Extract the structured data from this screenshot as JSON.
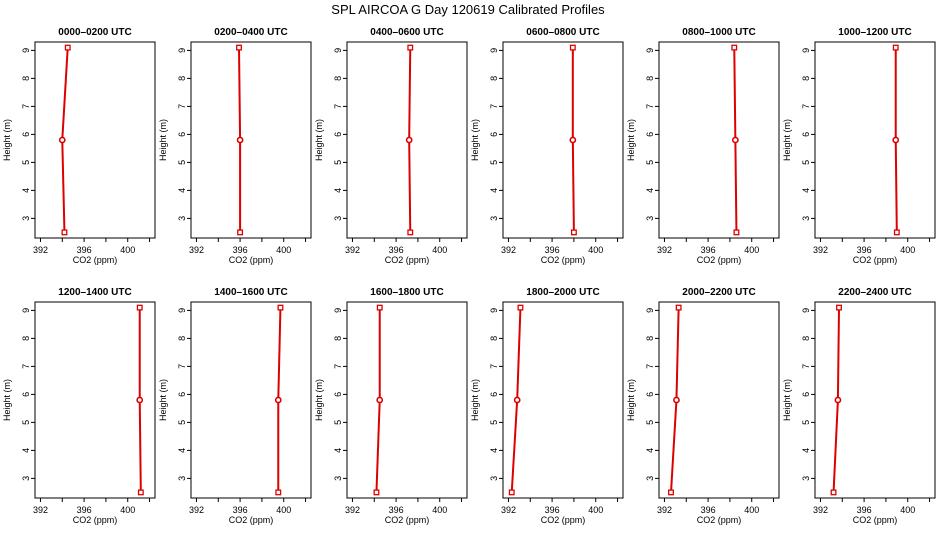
{
  "page_title": "SPL AIRCOA G  Day 120619  Calibrated Profiles",
  "series_color": "#dd0000",
  "chart_data": [
    {
      "type": "line",
      "title": "0000–0200 UTC",
      "xlabel": "CO2 (ppm)",
      "ylabel": "Height (m)",
      "xlim": [
        391.5,
        402.5
      ],
      "ylim": [
        2.3,
        9.3
      ],
      "xticks": [
        392,
        396,
        400
      ],
      "yticks": [
        3,
        4,
        5,
        6,
        7,
        8,
        9
      ],
      "series": [
        {
          "x": [
            394.2,
            394.0,
            394.5
          ],
          "y": [
            2.5,
            5.8,
            9.1
          ]
        }
      ]
    },
    {
      "type": "line",
      "title": "0200–0400 UTC",
      "xlabel": "CO2 (ppm)",
      "ylabel": "Height (m)",
      "xlim": [
        391.5,
        402.5
      ],
      "ylim": [
        2.3,
        9.3
      ],
      "xticks": [
        392,
        396,
        400
      ],
      "yticks": [
        3,
        4,
        5,
        6,
        7,
        8,
        9
      ],
      "series": [
        {
          "x": [
            396.0,
            396.0,
            395.9
          ],
          "y": [
            2.5,
            5.8,
            9.1
          ]
        }
      ]
    },
    {
      "type": "line",
      "title": "0400–0600 UTC",
      "xlabel": "CO2 (ppm)",
      "ylabel": "Height (m)",
      "xlim": [
        391.5,
        402.5
      ],
      "ylim": [
        2.3,
        9.3
      ],
      "xticks": [
        392,
        396,
        400
      ],
      "yticks": [
        3,
        4,
        5,
        6,
        7,
        8,
        9
      ],
      "series": [
        {
          "x": [
            397.3,
            397.2,
            397.3
          ],
          "y": [
            2.5,
            5.8,
            9.1
          ]
        }
      ]
    },
    {
      "type": "line",
      "title": "0600–0800 UTC",
      "xlabel": "CO2 (ppm)",
      "ylabel": "Height (m)",
      "xlim": [
        391.5,
        402.5
      ],
      "ylim": [
        2.3,
        9.3
      ],
      "xticks": [
        392,
        396,
        400
      ],
      "yticks": [
        3,
        4,
        5,
        6,
        7,
        8,
        9
      ],
      "series": [
        {
          "x": [
            398.0,
            397.9,
            397.9
          ],
          "y": [
            2.5,
            5.8,
            9.1
          ]
        }
      ]
    },
    {
      "type": "line",
      "title": "0800–1000 UTC",
      "xlabel": "CO2 (ppm)",
      "ylabel": "Height (m)",
      "xlim": [
        391.5,
        402.5
      ],
      "ylim": [
        2.3,
        9.3
      ],
      "xticks": [
        392,
        396,
        400
      ],
      "yticks": [
        3,
        4,
        5,
        6,
        7,
        8,
        9
      ],
      "series": [
        {
          "x": [
            398.6,
            398.5,
            398.4
          ],
          "y": [
            2.5,
            5.8,
            9.1
          ]
        }
      ]
    },
    {
      "type": "line",
      "title": "1000–1200 UTC",
      "xlabel": "CO2 (ppm)",
      "ylabel": "Height (m)",
      "xlim": [
        391.5,
        402.5
      ],
      "ylim": [
        2.3,
        9.3
      ],
      "xticks": [
        392,
        396,
        400
      ],
      "yticks": [
        3,
        4,
        5,
        6,
        7,
        8,
        9
      ],
      "series": [
        {
          "x": [
            399.0,
            398.9,
            398.9
          ],
          "y": [
            2.5,
            5.8,
            9.1
          ]
        }
      ]
    },
    {
      "type": "line",
      "title": "1200–1400 UTC",
      "xlabel": "CO2 (ppm)",
      "ylabel": "Height (m)",
      "xlim": [
        391.5,
        402.5
      ],
      "ylim": [
        2.3,
        9.3
      ],
      "xticks": [
        392,
        396,
        400
      ],
      "yticks": [
        3,
        4,
        5,
        6,
        7,
        8,
        9
      ],
      "series": [
        {
          "x": [
            401.2,
            401.1,
            401.1
          ],
          "y": [
            2.5,
            5.8,
            9.1
          ]
        }
      ]
    },
    {
      "type": "line",
      "title": "1400–1600 UTC",
      "xlabel": "CO2 (ppm)",
      "ylabel": "Height (m)",
      "xlim": [
        391.5,
        402.5
      ],
      "ylim": [
        2.3,
        9.3
      ],
      "xticks": [
        392,
        396,
        400
      ],
      "yticks": [
        3,
        4,
        5,
        6,
        7,
        8,
        9
      ],
      "series": [
        {
          "x": [
            399.5,
            399.5,
            399.7
          ],
          "y": [
            2.5,
            5.8,
            9.1
          ]
        }
      ]
    },
    {
      "type": "line",
      "title": "1600–1800 UTC",
      "xlabel": "CO2 (ppm)",
      "ylabel": "Height (m)",
      "xlim": [
        391.5,
        402.5
      ],
      "ylim": [
        2.3,
        9.3
      ],
      "xticks": [
        392,
        396,
        400
      ],
      "yticks": [
        3,
        4,
        5,
        6,
        7,
        8,
        9
      ],
      "series": [
        {
          "x": [
            394.2,
            394.5,
            394.5
          ],
          "y": [
            2.5,
            5.8,
            9.1
          ]
        }
      ]
    },
    {
      "type": "line",
      "title": "1800–2000 UTC",
      "xlabel": "CO2 (ppm)",
      "ylabel": "Height (m)",
      "xlim": [
        391.5,
        402.5
      ],
      "ylim": [
        2.3,
        9.3
      ],
      "xticks": [
        392,
        396,
        400
      ],
      "yticks": [
        3,
        4,
        5,
        6,
        7,
        8,
        9
      ],
      "series": [
        {
          "x": [
            392.3,
            392.8,
            393.1
          ],
          "y": [
            2.5,
            5.8,
            9.1
          ]
        }
      ]
    },
    {
      "type": "line",
      "title": "2000–2200 UTC",
      "xlabel": "CO2 (ppm)",
      "ylabel": "Height (m)",
      "xlim": [
        391.5,
        402.5
      ],
      "ylim": [
        2.3,
        9.3
      ],
      "xticks": [
        392,
        396,
        400
      ],
      "yticks": [
        3,
        4,
        5,
        6,
        7,
        8,
        9
      ],
      "series": [
        {
          "x": [
            392.6,
            393.1,
            393.3
          ],
          "y": [
            2.5,
            5.8,
            9.1
          ]
        }
      ]
    },
    {
      "type": "line",
      "title": "2200–2400 UTC",
      "xlabel": "CO2 (ppm)",
      "ylabel": "Height (m)",
      "xlim": [
        391.5,
        402.5
      ],
      "ylim": [
        2.3,
        9.3
      ],
      "xticks": [
        392,
        396,
        400
      ],
      "yticks": [
        3,
        4,
        5,
        6,
        7,
        8,
        9
      ],
      "series": [
        {
          "x": [
            393.2,
            393.6,
            393.7
          ],
          "y": [
            2.5,
            5.8,
            9.1
          ]
        }
      ]
    }
  ]
}
